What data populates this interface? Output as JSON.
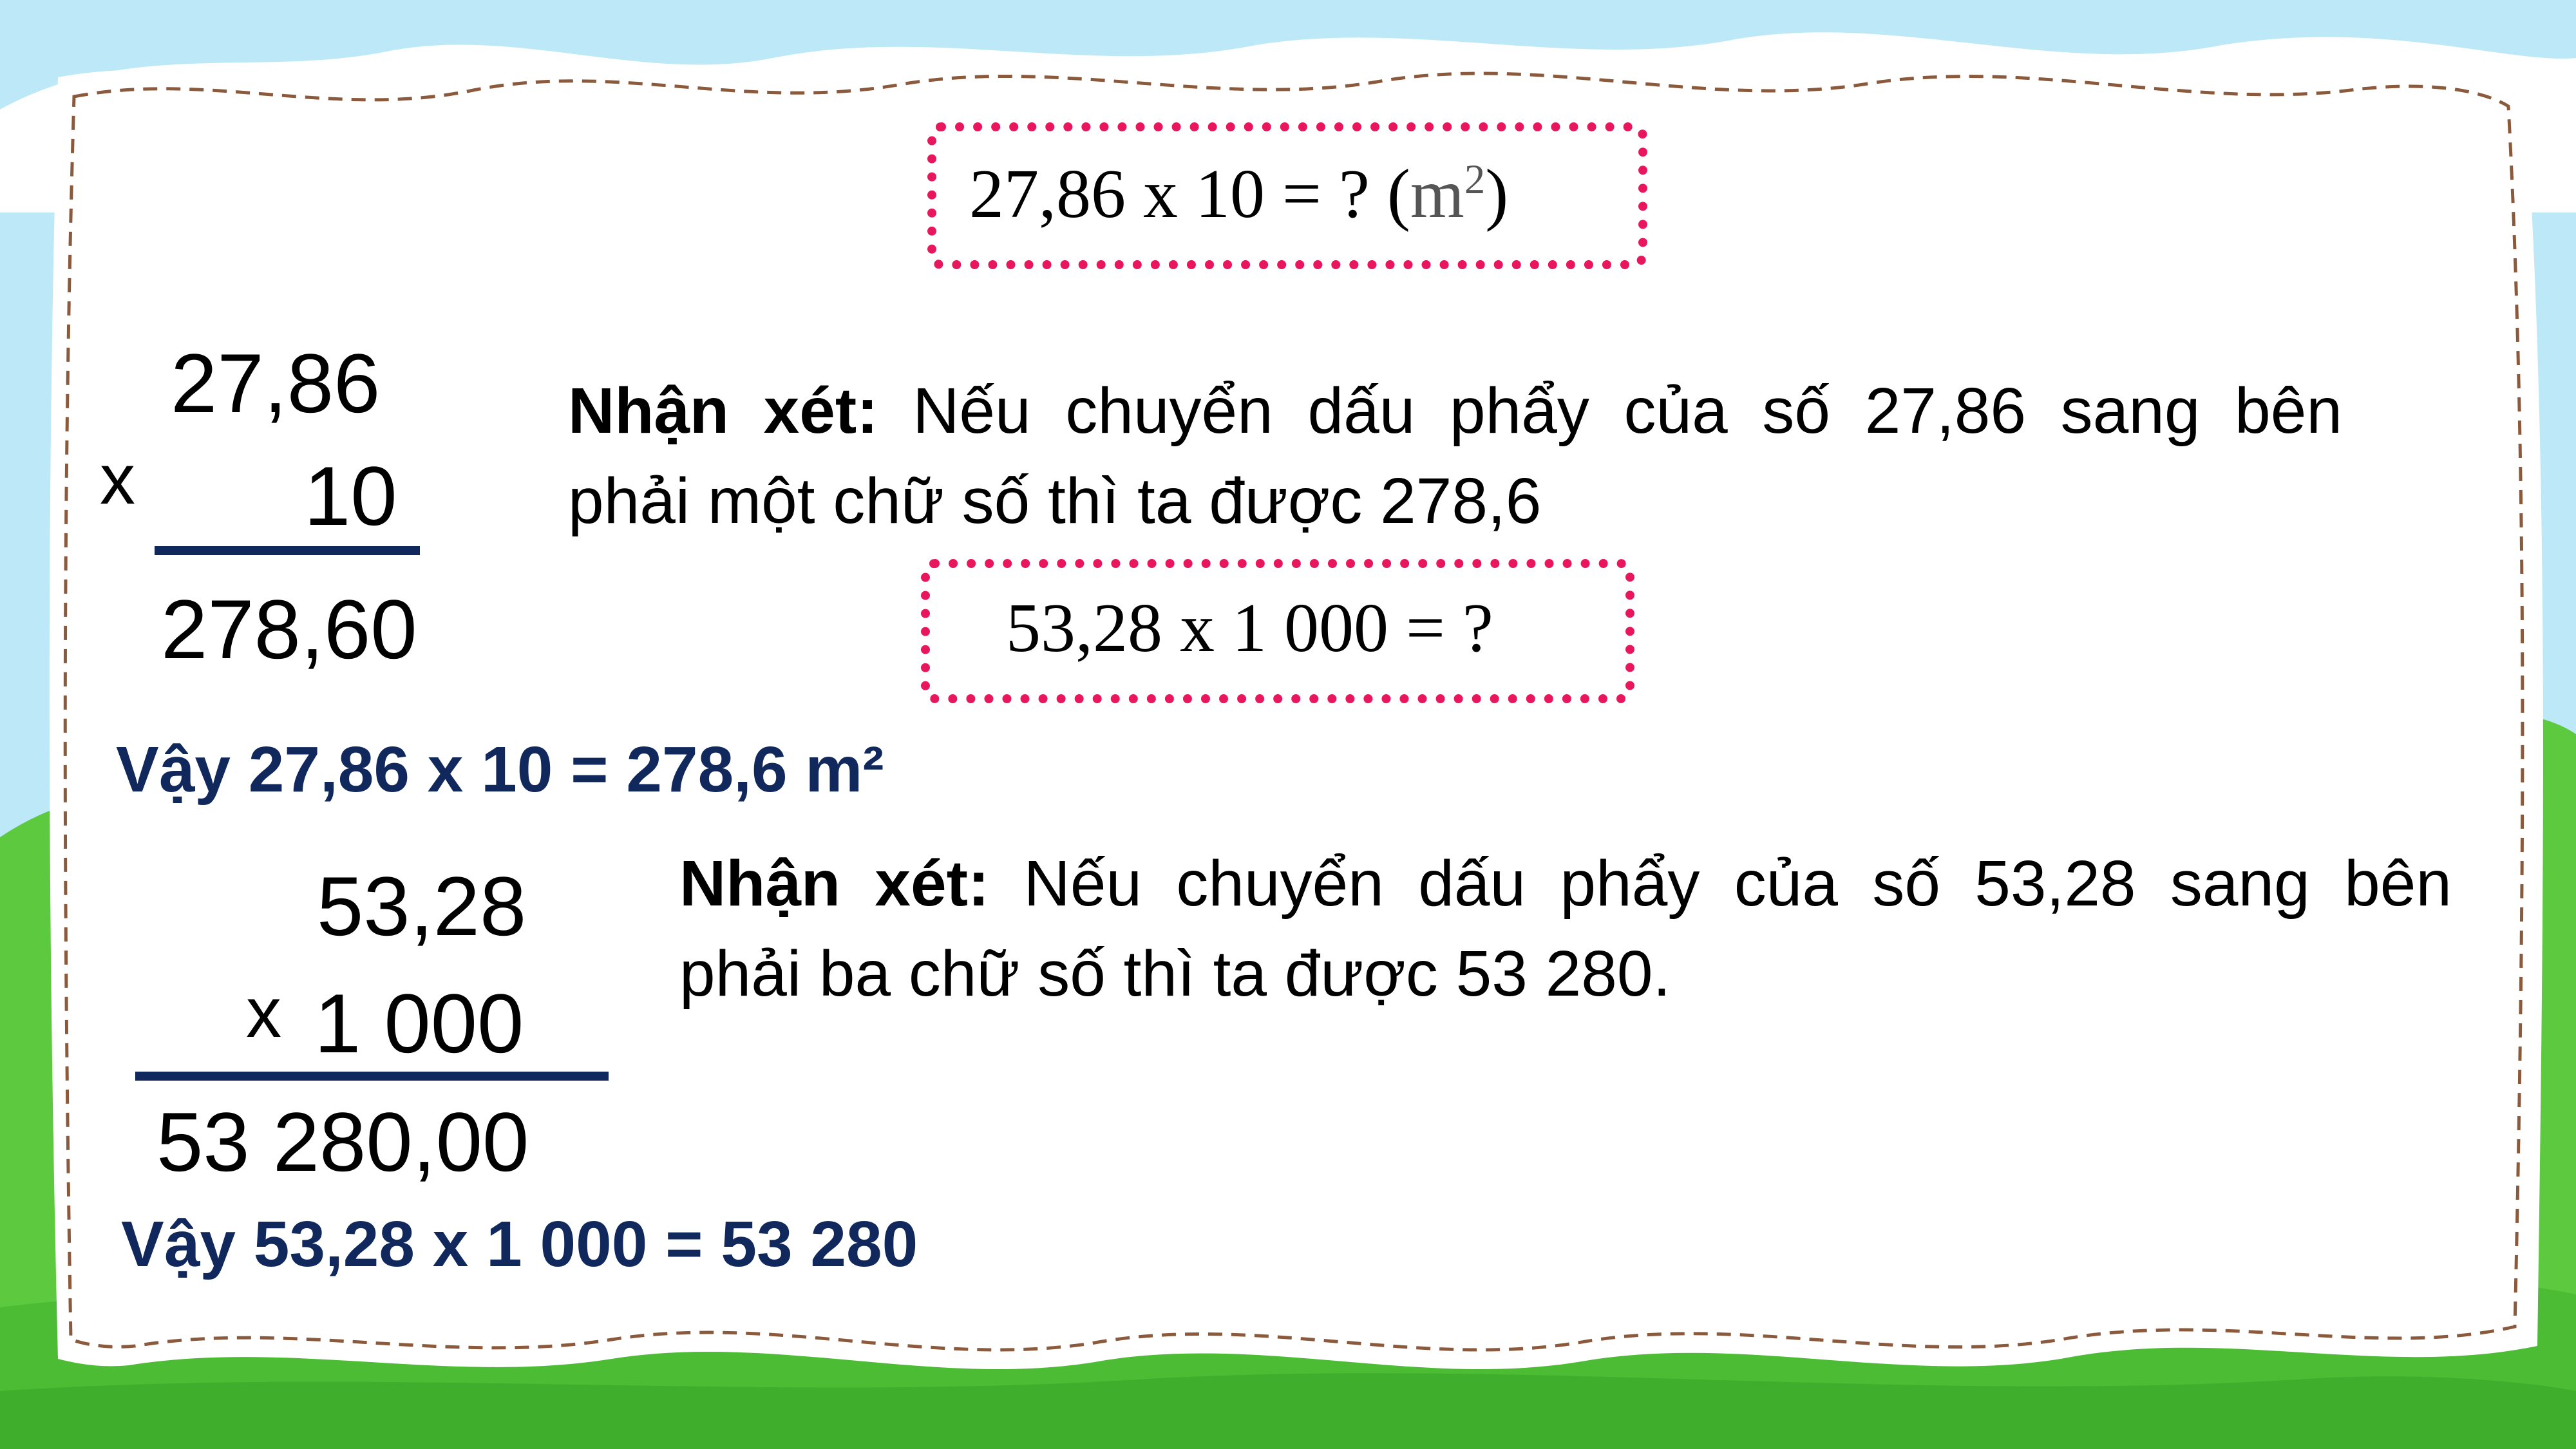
{
  "problem1": {
    "box_equation": "27,86 x 10  = ? (",
    "box_unit": "m",
    "box_unit_power": "2",
    "box_close": ")",
    "multiplicand": "27,86",
    "operator": "x",
    "multiplier": "10",
    "product": "278,60",
    "remark_label": "Nhận xét:",
    "remark_line1": "Nếu chuyển dấu phẩy của số 27,86 sang bên",
    "remark_line2": "phải một chữ số thì ta được 278,6",
    "conclusion": "Vậy 27,86 x 10 = 278,6 m²"
  },
  "problem2": {
    "box_equation": "53,28 x 1 000 = ?",
    "multiplicand": "53,28",
    "operator": "x",
    "multiplier": "1 000",
    "product": "53 280,00",
    "remark_label": "Nhận xét:",
    "remark_line1": "Nếu chuyển dấu phẩy của số 53,28 sang bên",
    "remark_line2": "phải ba chữ số thì ta được 53 280.",
    "conclusion": "Vậy 53,28 x 1 000 =  53 280"
  },
  "colors": {
    "sky": "#bde8f7",
    "grass": "#5cc93f",
    "grass_dark": "#3fae2c",
    "paper": "#ffffff",
    "stitch": "#8b5a3c",
    "highlight_border": "#e8175d",
    "conclusion_text": "#10285c",
    "rule": "#10285c"
  }
}
